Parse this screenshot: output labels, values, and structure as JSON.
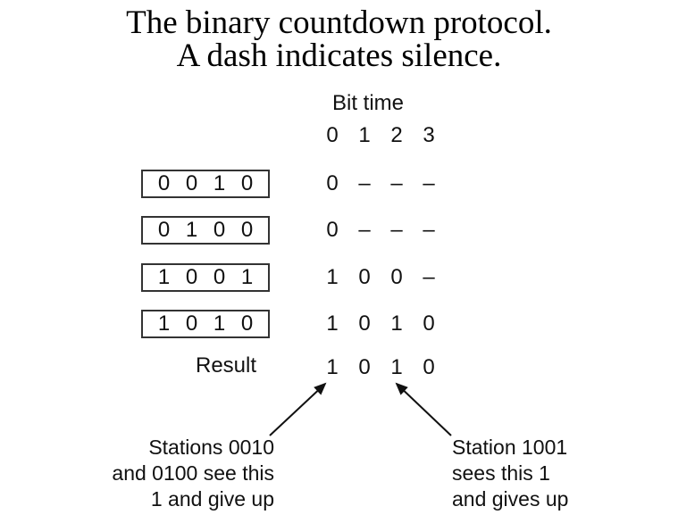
{
  "title": {
    "line1": "The binary countdown protocol.",
    "line2": "A dash indicates silence."
  },
  "bit_time_label": "Bit time",
  "bit_index": [
    "0",
    "1",
    "2",
    "3"
  ],
  "stations": [
    {
      "address": [
        "0",
        "0",
        "1",
        "0"
      ],
      "bits": [
        "0",
        "–",
        "–",
        "–"
      ]
    },
    {
      "address": [
        "0",
        "1",
        "0",
        "0"
      ],
      "bits": [
        "0",
        "–",
        "–",
        "–"
      ]
    },
    {
      "address": [
        "1",
        "0",
        "0",
        "1"
      ],
      "bits": [
        "1",
        "0",
        "0",
        "–"
      ]
    },
    {
      "address": [
        "1",
        "0",
        "1",
        "0"
      ],
      "bits": [
        "1",
        "0",
        "1",
        "0"
      ]
    }
  ],
  "result": {
    "label": "Result",
    "bits": [
      "1",
      "0",
      "1",
      "0"
    ]
  },
  "notes": {
    "left": [
      "Stations 0010",
      "and 0100 see this",
      "1 and give up"
    ],
    "right": [
      "Station 1001",
      "sees this 1",
      "and gives up"
    ]
  }
}
